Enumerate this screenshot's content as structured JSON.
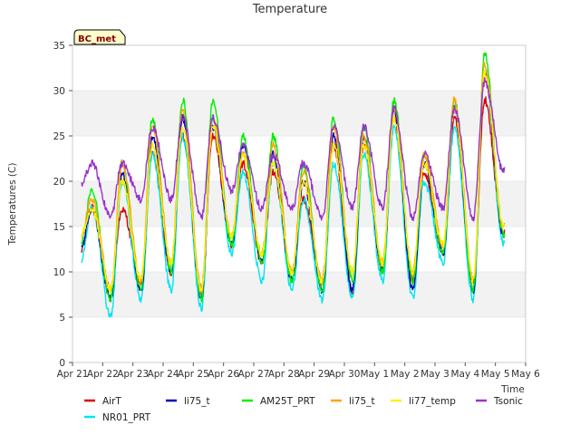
{
  "chart_data": {
    "type": "line",
    "title": "Temperature",
    "xlabel": "Time",
    "ylabel": "Temperatures (C)",
    "badge": "BC_met",
    "ylim": [
      0,
      35
    ],
    "xlim": [
      0,
      15
    ],
    "yticks": [
      0,
      5,
      10,
      15,
      20,
      25,
      30,
      35
    ],
    "xtick_labels": [
      "Apr 21",
      "Apr 22",
      "Apr 23",
      "Apr 24",
      "Apr 25",
      "Apr 26",
      "Apr 27",
      "Apr 28",
      "Apr 29",
      "Apr 30",
      "May 1",
      "May 2",
      "May 3",
      "May 4",
      "May 5",
      "May 6"
    ],
    "series_start_day": 0.3,
    "series_end_day": 14.3,
    "series": [
      {
        "name": "AirT",
        "color": "#dd0000",
        "min": [
          12.5,
          8,
          9,
          10,
          8,
          13,
          11,
          10,
          9,
          8,
          10,
          9,
          12,
          9,
          14
        ],
        "max": [
          17,
          17,
          23,
          25,
          25,
          22,
          21,
          18,
          24,
          24,
          27,
          21,
          27,
          29
        ]
      },
      {
        "name": "NR01_PRT",
        "color": "#00e5ee",
        "min": [
          11,
          5,
          7,
          8,
          6,
          12,
          9,
          8,
          7,
          7,
          9,
          7,
          11,
          7,
          13
        ],
        "max": [
          17,
          20,
          23,
          25,
          27,
          21,
          22,
          18,
          22,
          23,
          26,
          20,
          26,
          32
        ]
      },
      {
        "name": "li75_t",
        "color": "#0000bb",
        "min": [
          12.5,
          7,
          8,
          10,
          7,
          13,
          11,
          9,
          8,
          8,
          10,
          8,
          12,
          8,
          14
        ],
        "max": [
          17,
          21,
          25,
          27,
          26,
          24,
          23,
          20,
          25,
          25,
          28,
          22,
          28,
          32
        ]
      },
      {
        "name": "AM25T_PRT",
        "color": "#00ee00",
        "min": [
          13,
          7,
          8,
          10,
          7,
          13,
          11,
          9,
          8,
          9,
          10,
          9,
          12,
          8,
          14
        ],
        "max": [
          19,
          22,
          27,
          29,
          29,
          25,
          25,
          22,
          27,
          26,
          29,
          23,
          29,
          34
        ]
      },
      {
        "name": "li75_t",
        "color": "#ffa500",
        "min": [
          14,
          8,
          9,
          11,
          8,
          14,
          12,
          10,
          9,
          10,
          11,
          10,
          13,
          9,
          15
        ],
        "max": [
          18,
          22,
          26,
          28,
          27,
          23,
          24,
          21,
          26,
          25,
          28,
          23,
          29,
          33
        ]
      },
      {
        "name": "li77_temp",
        "color": "#ffee00",
        "min": [
          14,
          8,
          9,
          11,
          8,
          14,
          12,
          10,
          9,
          10,
          11,
          10,
          13,
          9,
          15
        ],
        "max": [
          17,
          20,
          24,
          26,
          26,
          23,
          22,
          20,
          24,
          24,
          27,
          22,
          28,
          32
        ]
      },
      {
        "name": "Tsonic",
        "color": "#9932cc",
        "min": [
          19.5,
          16,
          18,
          18,
          16,
          19,
          17,
          17,
          16,
          17,
          17,
          16,
          17,
          16,
          21
        ],
        "max": [
          22,
          22,
          26,
          27,
          27,
          24,
          23,
          22,
          26,
          26,
          28,
          23,
          28,
          31
        ]
      }
    ],
    "legend": {
      "placement": "bottom",
      "rows": [
        [
          {
            "name": "AirT",
            "color": "#dd0000"
          },
          {
            "name": "li75_t",
            "color": "#0000bb"
          },
          {
            "name": "AM25T_PRT",
            "color": "#00ee00"
          },
          {
            "name": "li75_t",
            "color": "#ffa500"
          },
          {
            "name": "li77_temp",
            "color": "#ffee00"
          },
          {
            "name": "Tsonic",
            "color": "#9932cc"
          }
        ],
        [
          {
            "name": "NR01_PRT",
            "color": "#00e5ee"
          }
        ]
      ]
    }
  }
}
